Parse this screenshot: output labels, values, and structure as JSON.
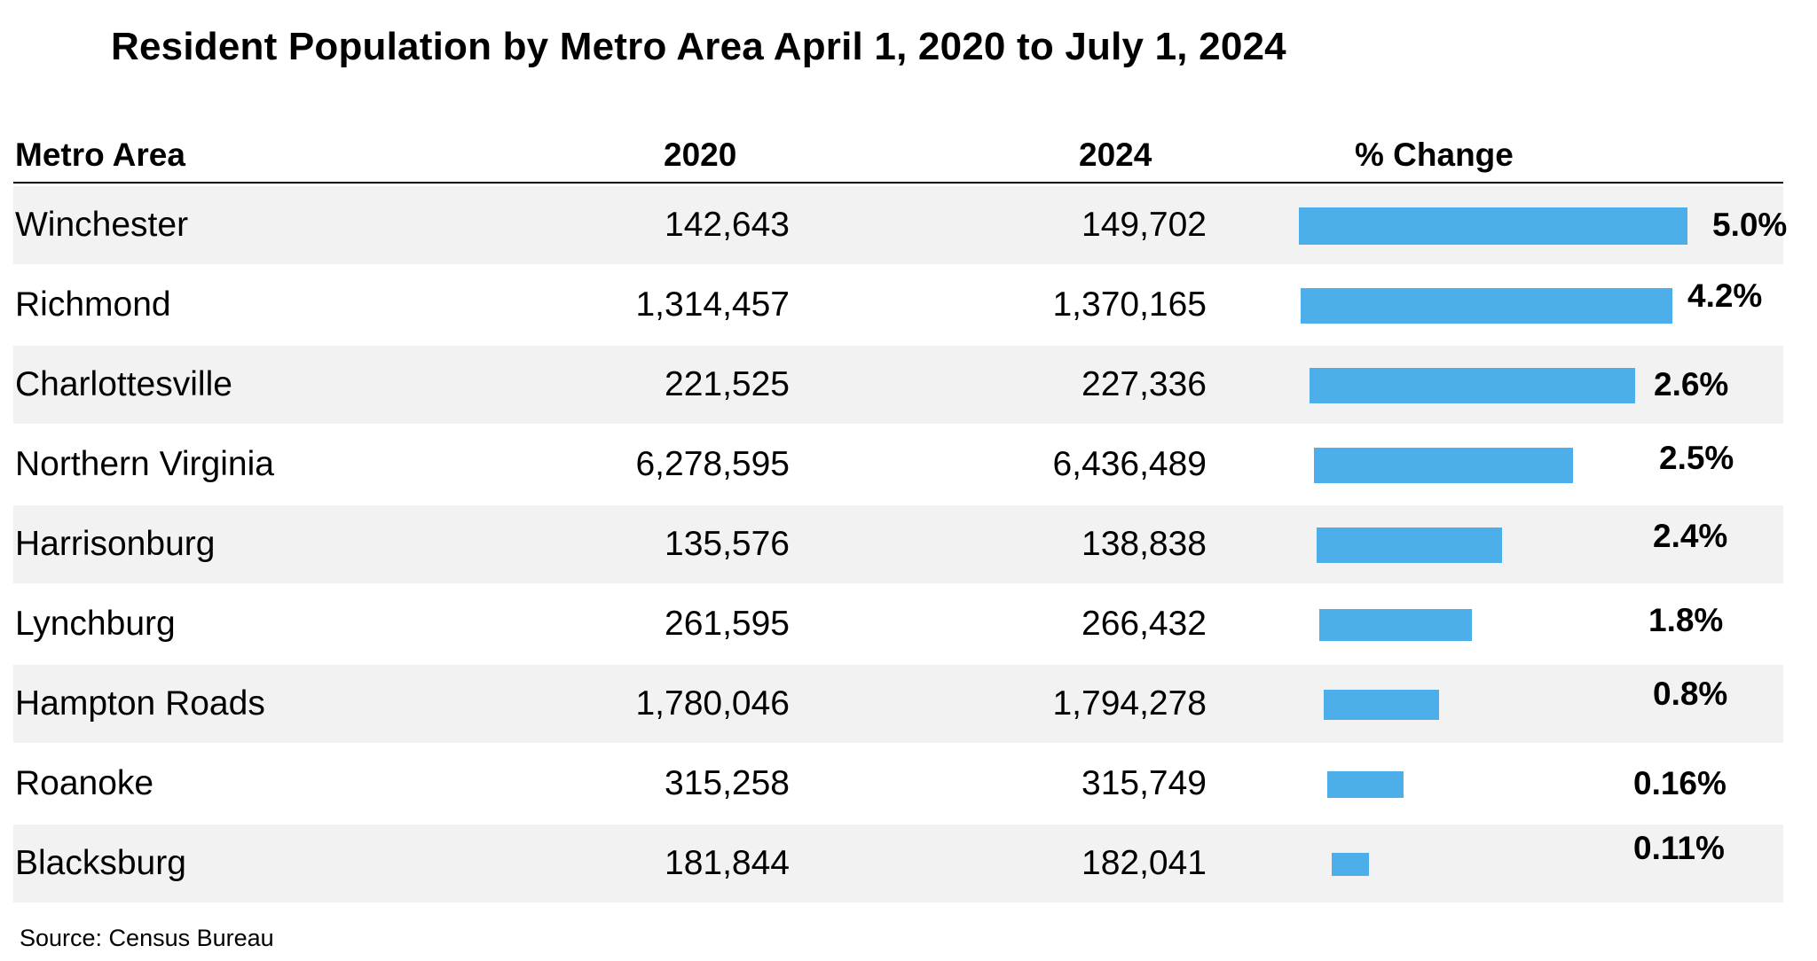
{
  "chart_data": {
    "type": "table",
    "title": "Resident Population by Metro Area April 1, 2020 to July 1, 2024",
    "columns": [
      "Metro Area",
      "2020",
      "2024",
      "% Change"
    ],
    "rows": [
      {
        "name": "Winchester",
        "y2020": "142,643",
        "y2024": "149,702",
        "pct": 5.0,
        "pct_label": "5.0%"
      },
      {
        "name": "Richmond",
        "y2020": "1,314,457",
        "y2024": "1,370,165",
        "pct": 4.2,
        "pct_label": "4.2%"
      },
      {
        "name": "Charlottesville",
        "y2020": "221,525",
        "y2024": "227,336",
        "pct": 2.6,
        "pct_label": "2.6%"
      },
      {
        "name": "Northern Virginia",
        "y2020": "6,278,595",
        "y2024": "6,436,489",
        "pct": 2.5,
        "pct_label": "2.5%"
      },
      {
        "name": "Harrisonburg",
        "y2020": "135,576",
        "y2024": "138,838",
        "pct": 2.4,
        "pct_label": "2.4%"
      },
      {
        "name": "Lynchburg",
        "y2020": "261,595",
        "y2024": "266,432",
        "pct": 1.8,
        "pct_label": "1.8%"
      },
      {
        "name": "Hampton Roads",
        "y2020": "1,780,046",
        "y2024": "1,794,278",
        "pct": 0.8,
        "pct_label": "0.8%"
      },
      {
        "name": "Roanoke",
        "y2020": "315,258",
        "y2024": "315,749",
        "pct": 0.16,
        "pct_label": "0.16%"
      },
      {
        "name": "Blacksburg",
        "y2020": "181,844",
        "y2024": "182,041",
        "pct": 0.11,
        "pct_label": "0.11%"
      }
    ],
    "bar_color": "#4dafe9",
    "row_shade_color": "#f2f2f2",
    "source": "Source: Census Bureau"
  }
}
